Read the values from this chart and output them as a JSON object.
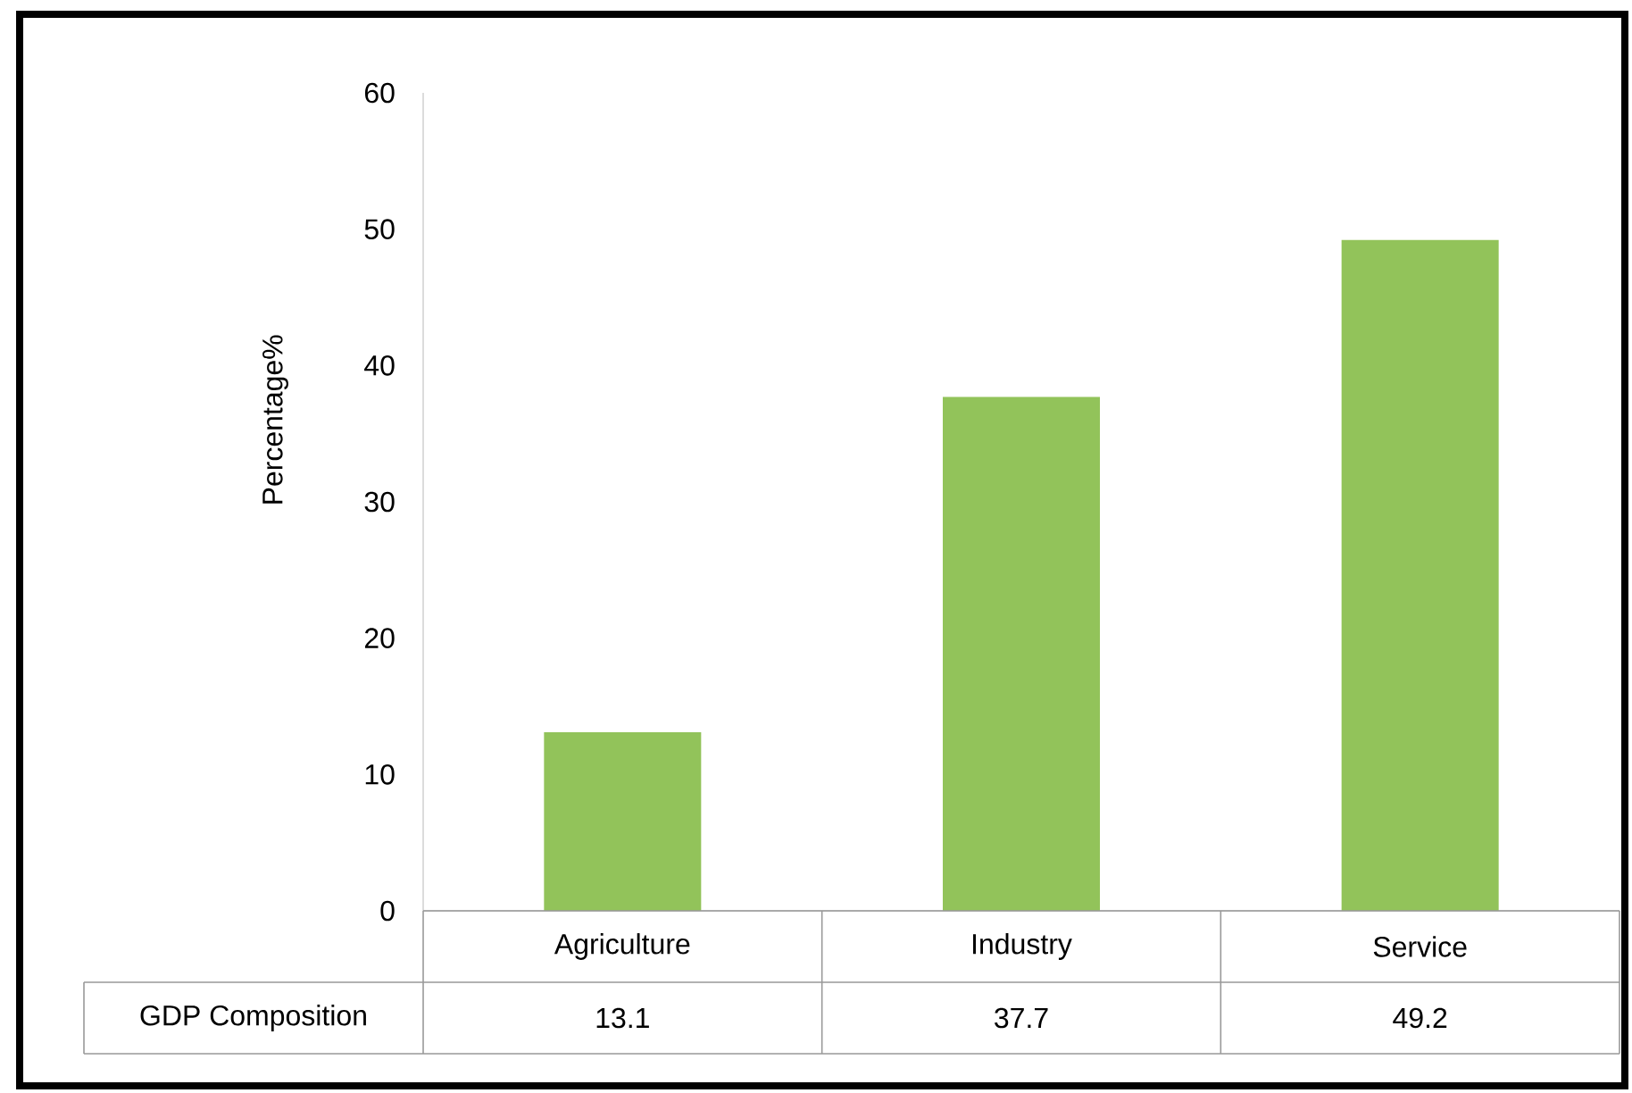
{
  "chart_data": {
    "type": "bar",
    "ylabel": "Percentage%",
    "categories": [
      "Agriculture",
      "Industry",
      "Service"
    ],
    "series": [
      {
        "name": "GDP Composition",
        "color": "#92c35a",
        "values": [
          13.1,
          37.7,
          49.2
        ]
      }
    ],
    "ylim": [
      0,
      60
    ],
    "yticks": [
      0,
      10,
      20,
      30,
      40,
      50,
      60
    ],
    "data_labels": true
  }
}
